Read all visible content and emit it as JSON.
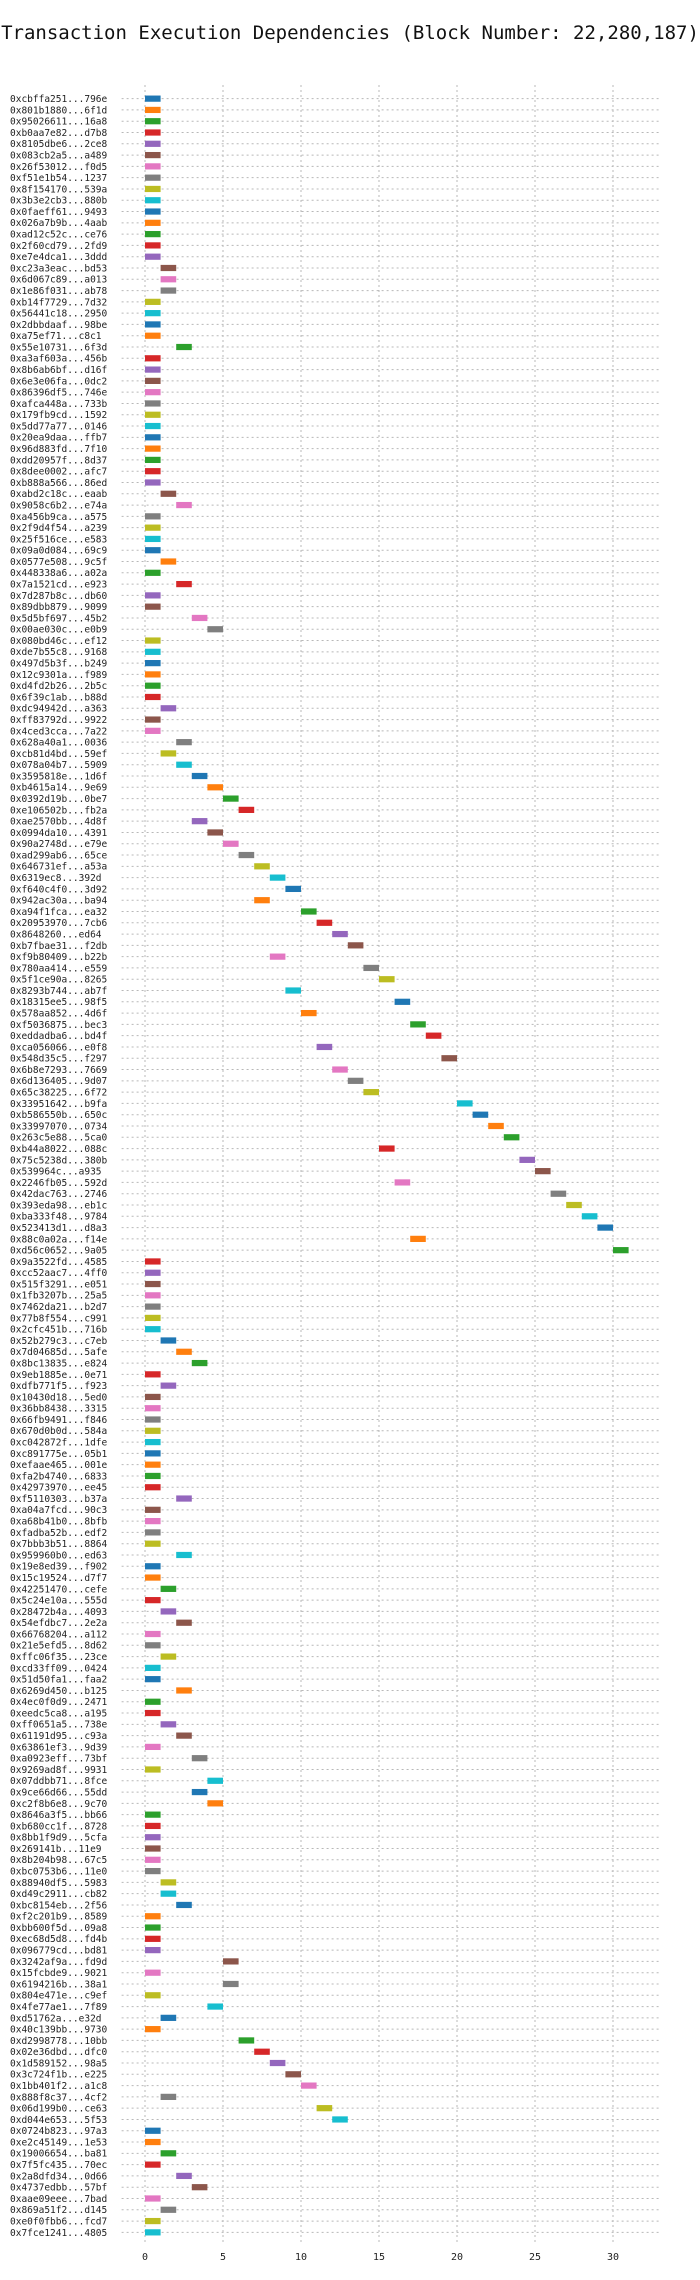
{
  "chart_data": {
    "type": "bar",
    "title": "Transaction Execution Dependencies (Block Number: 22,280,187)",
    "xlabel": "",
    "ylabel": "",
    "xlim": [
      -1.5,
      33
    ],
    "xticks": [
      0,
      5,
      10,
      15,
      20,
      25,
      30
    ],
    "grid": true,
    "bar_width": 1,
    "palette": [
      "#1f77b4",
      "#ff7f0e",
      "#2ca02c",
      "#d62728",
      "#9467bd",
      "#8c564b",
      "#e377c2",
      "#7f7f7f",
      "#bcbd22",
      "#17becf"
    ],
    "transactions": [
      {
        "label": "0xcbffa251...796e",
        "start": 0
      },
      {
        "label": "0x801b1880...6f1d",
        "start": 0
      },
      {
        "label": "0x95026611...16a8",
        "start": 0
      },
      {
        "label": "0xb0aa7e82...d7b8",
        "start": 0
      },
      {
        "label": "0x8105dbe6...2ce8",
        "start": 0
      },
      {
        "label": "0x083cb2a5...a489",
        "start": 0
      },
      {
        "label": "0x26f53012...f0d5",
        "start": 0
      },
      {
        "label": "0xf51e1b54...1237",
        "start": 0
      },
      {
        "label": "0x8f154170...539a",
        "start": 0
      },
      {
        "label": "0x3b3e2cb3...880b",
        "start": 0
      },
      {
        "label": "0x0faeff61...9493",
        "start": 0
      },
      {
        "label": "0x026a7b9b...4aab",
        "start": 0
      },
      {
        "label": "0xad12c52c...ce76",
        "start": 0
      },
      {
        "label": "0x2f60cd79...2fd9",
        "start": 0
      },
      {
        "label": "0xe7e4dca1...3ddd",
        "start": 0
      },
      {
        "label": "0xc23a3eac...bd53",
        "start": 1
      },
      {
        "label": "0x6d067c89...a013",
        "start": 1
      },
      {
        "label": "0x1e86f031...ab78",
        "start": 1
      },
      {
        "label": "0xb14f7729...7d32",
        "start": 0
      },
      {
        "label": "0x56441c18...2950",
        "start": 0
      },
      {
        "label": "0x2dbbdaaf...98be",
        "start": 0
      },
      {
        "label": "0xa75ef71...c8c1",
        "start": 0
      },
      {
        "label": "0x55e10731...6f3d",
        "start": 2
      },
      {
        "label": "0xa3af603a...456b",
        "start": 0
      },
      {
        "label": "0x8b6ab6bf...d16f",
        "start": 0
      },
      {
        "label": "0x6e3e06fa...0dc2",
        "start": 0
      },
      {
        "label": "0x86396df5...746e",
        "start": 0
      },
      {
        "label": "0xafca448a...733b",
        "start": 0
      },
      {
        "label": "0x179fb9cd...1592",
        "start": 0
      },
      {
        "label": "0x5dd77a77...0146",
        "start": 0
      },
      {
        "label": "0x20ea9daa...ffb7",
        "start": 0
      },
      {
        "label": "0x96d883fd...7f10",
        "start": 0
      },
      {
        "label": "0xdd20957f...8d37",
        "start": 0
      },
      {
        "label": "0x8dee0002...afc7",
        "start": 0
      },
      {
        "label": "0xb888a566...86ed",
        "start": 0
      },
      {
        "label": "0xabd2c18c...eaab",
        "start": 1
      },
      {
        "label": "0x9058c6b2...e74a",
        "start": 2
      },
      {
        "label": "0xa456b9ca...a575",
        "start": 0
      },
      {
        "label": "0x2f9d4f54...a239",
        "start": 0
      },
      {
        "label": "0x25f516ce...e583",
        "start": 0
      },
      {
        "label": "0x09a0d084...69c9",
        "start": 0
      },
      {
        "label": "0x0577e508...9c5f",
        "start": 1
      },
      {
        "label": "0x448338a6...a02a",
        "start": 0
      },
      {
        "label": "0x7a1521cd...e923",
        "start": 2
      },
      {
        "label": "0x7d287b8c...db60",
        "start": 0
      },
      {
        "label": "0x89dbb879...9099",
        "start": 0
      },
      {
        "label": "0x5d5bf697...45b2",
        "start": 3
      },
      {
        "label": "0x00ae030c...e0b9",
        "start": 4
      },
      {
        "label": "0x080bd46c...ef12",
        "start": 0
      },
      {
        "label": "0xde7b55c8...9168",
        "start": 0
      },
      {
        "label": "0x497d5b3f...b249",
        "start": 0
      },
      {
        "label": "0x12c9301a...f989",
        "start": 0
      },
      {
        "label": "0xd4fd2b26...2b5c",
        "start": 0
      },
      {
        "label": "0x6f39c1ab...b88d",
        "start": 0
      },
      {
        "label": "0xdc94942d...a363",
        "start": 1
      },
      {
        "label": "0xff83792d...9922",
        "start": 0
      },
      {
        "label": "0x4ced3cca...7a22",
        "start": 0
      },
      {
        "label": "0x628a40a1...0036",
        "start": 2
      },
      {
        "label": "0xcb81d4bd...59ef",
        "start": 1
      },
      {
        "label": "0x078a04b7...5909",
        "start": 2
      },
      {
        "label": "0x3595818e...1d6f",
        "start": 3
      },
      {
        "label": "0xb4615a14...9e69",
        "start": 4
      },
      {
        "label": "0x0392d19b...0be7",
        "start": 5
      },
      {
        "label": "0xe106502b...fb2a",
        "start": 6
      },
      {
        "label": "0xae2570bb...4d8f",
        "start": 3
      },
      {
        "label": "0x0994da10...4391",
        "start": 4
      },
      {
        "label": "0x90a2748d...e79e",
        "start": 5
      },
      {
        "label": "0xad299ab6...65ce",
        "start": 6
      },
      {
        "label": "0x646731ef...a53a",
        "start": 7
      },
      {
        "label": "0x6319ec8...392d",
        "start": 8
      },
      {
        "label": "0xf640c4f0...3d92",
        "start": 9
      },
      {
        "label": "0x942ac30a...ba94",
        "start": 7
      },
      {
        "label": "0xa94f1fca...ea32",
        "start": 10
      },
      {
        "label": "0x20953970...7cb6",
        "start": 11
      },
      {
        "label": "0x8648260...ed64",
        "start": 12
      },
      {
        "label": "0xb7fbae31...f2db",
        "start": 13
      },
      {
        "label": "0xf9b80409...b22b",
        "start": 8
      },
      {
        "label": "0x780aa414...e559",
        "start": 14
      },
      {
        "label": "0x5f1ce90a...8265",
        "start": 15
      },
      {
        "label": "0x8293b744...ab7f",
        "start": 9
      },
      {
        "label": "0x18315ee5...98f5",
        "start": 16
      },
      {
        "label": "0x578aa852...4d6f",
        "start": 10
      },
      {
        "label": "0xf5036875...bec3",
        "start": 17
      },
      {
        "label": "0xeddadba6...bd4f",
        "start": 18
      },
      {
        "label": "0xca056066...e0f8",
        "start": 11
      },
      {
        "label": "0x548d35c5...f297",
        "start": 19
      },
      {
        "label": "0x6b8e7293...7669",
        "start": 12
      },
      {
        "label": "0x6d136405...9d07",
        "start": 13
      },
      {
        "label": "0x65c38225...6f72",
        "start": 14
      },
      {
        "label": "0x33951642...b9fa",
        "start": 20
      },
      {
        "label": "0xb586550b...650c",
        "start": 21
      },
      {
        "label": "0x33997070...0734",
        "start": 22
      },
      {
        "label": "0x263c5e88...5ca0",
        "start": 23
      },
      {
        "label": "0xb44a8022...088c",
        "start": 15
      },
      {
        "label": "0x75c5238d...380b",
        "start": 24
      },
      {
        "label": "0x539964c...a935",
        "start": 25
      },
      {
        "label": "0x2246fb05...592d",
        "start": 16
      },
      {
        "label": "0x42dac763...2746",
        "start": 26
      },
      {
        "label": "0x393eda98...eb1c",
        "start": 27
      },
      {
        "label": "0xba333f48...9784",
        "start": 28
      },
      {
        "label": "0x523413d1...d8a3",
        "start": 29
      },
      {
        "label": "0x88c0a02a...f14e",
        "start": 17
      },
      {
        "label": "0xd56c0652...9a05",
        "start": 30
      },
      {
        "label": "0x9a3522fd...4585",
        "start": 0
      },
      {
        "label": "0xcc52aac7...4ff0",
        "start": 0
      },
      {
        "label": "0x515f3291...e051",
        "start": 0
      },
      {
        "label": "0x1fb3207b...25a5",
        "start": 0
      },
      {
        "label": "0x7462da21...b2d7",
        "start": 0
      },
      {
        "label": "0x77b8f554...c991",
        "start": 0
      },
      {
        "label": "0x2cfc451b...716b",
        "start": 0
      },
      {
        "label": "0x52b279c3...c7eb",
        "start": 1
      },
      {
        "label": "0x7d04685d...5afe",
        "start": 2
      },
      {
        "label": "0x8bc13835...e824",
        "start": 3
      },
      {
        "label": "0x9eb1885e...0e71",
        "start": 0
      },
      {
        "label": "0xdfb771f5...f923",
        "start": 1
      },
      {
        "label": "0x10430d18...5ed0",
        "start": 0
      },
      {
        "label": "0x36bb8438...3315",
        "start": 0
      },
      {
        "label": "0x66fb9491...f846",
        "start": 0
      },
      {
        "label": "0x670d0b0d...584a",
        "start": 0
      },
      {
        "label": "0xc042872f...1dfe",
        "start": 0
      },
      {
        "label": "0xc891775e...05b1",
        "start": 0
      },
      {
        "label": "0xefaae465...001e",
        "start": 0
      },
      {
        "label": "0xfa2b4740...6833",
        "start": 0
      },
      {
        "label": "0x42973970...ee45",
        "start": 0
      },
      {
        "label": "0xf5110303...b37a",
        "start": 2
      },
      {
        "label": "0xa04a7fcd...90c3",
        "start": 0
      },
      {
        "label": "0xa68b41b0...8bfb",
        "start": 0
      },
      {
        "label": "0xfadba52b...edf2",
        "start": 0
      },
      {
        "label": "0x7bbb3b51...8864",
        "start": 0
      },
      {
        "label": "0x959960b0...ed63",
        "start": 2
      },
      {
        "label": "0x19e8ed39...f902",
        "start": 0
      },
      {
        "label": "0x15c19524...d7f7",
        "start": 0
      },
      {
        "label": "0x42251470...cefe",
        "start": 1
      },
      {
        "label": "0x5c24e10a...555d",
        "start": 0
      },
      {
        "label": "0x28472b4a...4093",
        "start": 1
      },
      {
        "label": "0x54efdbc7...2e2a",
        "start": 2
      },
      {
        "label": "0x66768204...a112",
        "start": 0
      },
      {
        "label": "0x21e5efd5...8d62",
        "start": 0
      },
      {
        "label": "0xffc06f35...23ce",
        "start": 1
      },
      {
        "label": "0xcd33ff09...0424",
        "start": 0
      },
      {
        "label": "0x51d50fa1...faa2",
        "start": 0
      },
      {
        "label": "0x6269d450...b125",
        "start": 2
      },
      {
        "label": "0x4ec0f0d9...2471",
        "start": 0
      },
      {
        "label": "0xeedc5ca8...a195",
        "start": 0
      },
      {
        "label": "0xff0651a5...738e",
        "start": 1
      },
      {
        "label": "0x61191d95...c93a",
        "start": 2
      },
      {
        "label": "0x63861ef3...9d39",
        "start": 0
      },
      {
        "label": "0xa0923eff...73bf",
        "start": 3
      },
      {
        "label": "0x9269ad8f...9931",
        "start": 0
      },
      {
        "label": "0x07ddbb71...8fce",
        "start": 4
      },
      {
        "label": "0x9ce66d66...55dd",
        "start": 3
      },
      {
        "label": "0xc2f8b6e8...9c70",
        "start": 4
      },
      {
        "label": "0x8646a3f5...bb66",
        "start": 0
      },
      {
        "label": "0xb680cc1f...8728",
        "start": 0
      },
      {
        "label": "0x8bb1f9d9...5cfa",
        "start": 0
      },
      {
        "label": "0x269141b...11e9",
        "start": 0
      },
      {
        "label": "0x8b204b98...67c5",
        "start": 0
      },
      {
        "label": "0xbc0753b6...11e0",
        "start": 0
      },
      {
        "label": "0x88940df5...5983",
        "start": 1
      },
      {
        "label": "0xd49c2911...cb82",
        "start": 1
      },
      {
        "label": "0xbc8154eb...2f56",
        "start": 2
      },
      {
        "label": "0xf2c201b9...8589",
        "start": 0
      },
      {
        "label": "0xbb600f5d...09a8",
        "start": 0
      },
      {
        "label": "0xec68d5d8...fd4b",
        "start": 0
      },
      {
        "label": "0x096779cd...bd81",
        "start": 0
      },
      {
        "label": "0x3242af9a...fd9d",
        "start": 5
      },
      {
        "label": "0x15fcbde9...9021",
        "start": 0
      },
      {
        "label": "0x6194216b...38a1",
        "start": 5
      },
      {
        "label": "0x804e471e...c9ef",
        "start": 0
      },
      {
        "label": "0x4fe77ae1...7f89",
        "start": 4
      },
      {
        "label": "0xd51762a...e32d",
        "start": 1
      },
      {
        "label": "0x40c139bb...9730",
        "start": 0
      },
      {
        "label": "0xd2998778...10bb",
        "start": 6
      },
      {
        "label": "0x02e36dbd...dfc0",
        "start": 7
      },
      {
        "label": "0x1d589152...98a5",
        "start": 8
      },
      {
        "label": "0x3c724f1b...e225",
        "start": 9
      },
      {
        "label": "0x1bb401f2...a1c8",
        "start": 10
      },
      {
        "label": "0x888f8c37...4cf2",
        "start": 1
      },
      {
        "label": "0x06d199b0...ce63",
        "start": 11
      },
      {
        "label": "0xd044e653...5f53",
        "start": 12
      },
      {
        "label": "0x0724b823...97a3",
        "start": 0
      },
      {
        "label": "0xe2c45149...1e53",
        "start": 0
      },
      {
        "label": "0x19006654...ba81",
        "start": 1
      },
      {
        "label": "0x7f5fc435...70ec",
        "start": 0
      },
      {
        "label": "0x2a8dfd34...0d66",
        "start": 2
      },
      {
        "label": "0x4737edbb...57bf",
        "start": 3
      },
      {
        "label": "0xaae09eee...7bad",
        "start": 0
      },
      {
        "label": "0x869a51f2...d145",
        "start": 1
      },
      {
        "label": "0xe0f0fbb6...fcd7",
        "start": 0
      },
      {
        "label": "0x7fce1241...4805",
        "start": 0
      }
    ]
  }
}
